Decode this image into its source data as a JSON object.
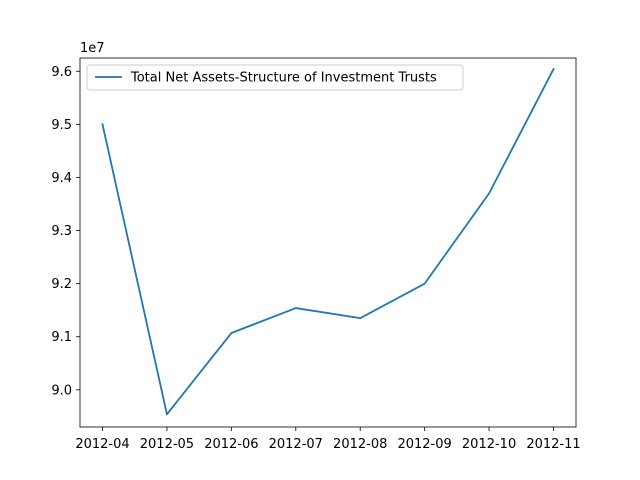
{
  "chart_data": {
    "type": "line",
    "title": "",
    "xlabel": "",
    "ylabel": "",
    "y_offset_label": "1e7",
    "x": [
      "2012-04",
      "2012-05",
      "2012-06",
      "2012-07",
      "2012-08",
      "2012-09",
      "2012-10",
      "2012-11"
    ],
    "series": [
      {
        "name": "Total Net Assets-Structure of Investment Trusts",
        "values": [
          95000000,
          89540000,
          91070000,
          91540000,
          91350000,
          92000000,
          93700000,
          96040000
        ]
      }
    ],
    "ylim": [
      89300000,
      96250000
    ],
    "yticks": [
      {
        "value": 90000000,
        "label": "9.0"
      },
      {
        "value": 91000000,
        "label": "9.1"
      },
      {
        "value": 92000000,
        "label": "9.2"
      },
      {
        "value": 93000000,
        "label": "9.3"
      },
      {
        "value": 94000000,
        "label": "9.4"
      },
      {
        "value": 95000000,
        "label": "9.5"
      },
      {
        "value": 96000000,
        "label": "9.6"
      }
    ],
    "grid": false,
    "legend_position": "top-left",
    "line_color": "#1f77b4"
  }
}
